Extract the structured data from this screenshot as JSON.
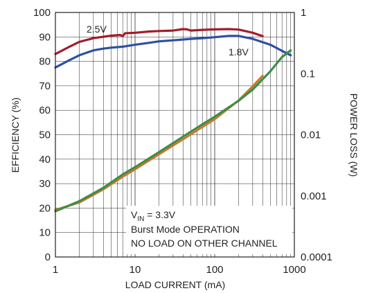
{
  "chart_data": {
    "type": "line",
    "xlabel": "LOAD CURRENT (mA)",
    "ylabel": "EFFICIENCY (%)",
    "y2label": "POWER LOSS (W)",
    "xscale": "log",
    "xlim": [
      1,
      1000
    ],
    "ylim": [
      0,
      100
    ],
    "y2scale": "log",
    "y2lim": [
      0.0001,
      1
    ],
    "grid": true,
    "x_ticks": [
      {
        "value": 1,
        "label": "1"
      },
      {
        "value": 10,
        "label": "10"
      },
      {
        "value": 100,
        "label": "100"
      },
      {
        "value": 1000,
        "label": "1000"
      }
    ],
    "y_ticks": [
      {
        "value": 0,
        "label": "0"
      },
      {
        "value": 10,
        "label": "10"
      },
      {
        "value": 20,
        "label": "20"
      },
      {
        "value": 30,
        "label": "30"
      },
      {
        "value": 40,
        "label": "40"
      },
      {
        "value": 50,
        "label": "50"
      },
      {
        "value": 60,
        "label": "60"
      },
      {
        "value": 70,
        "label": "70"
      },
      {
        "value": 80,
        "label": "80"
      },
      {
        "value": 90,
        "label": "90"
      },
      {
        "value": 100,
        "label": "100"
      }
    ],
    "y2_ticks": [
      {
        "value": 1,
        "label": "1"
      },
      {
        "value": 0.1,
        "label": "0.1"
      },
      {
        "value": 0.01,
        "label": "0.01"
      },
      {
        "value": 0.001,
        "label": "0.001"
      },
      {
        "value": 0.0001,
        "label": "0.0001"
      }
    ],
    "series": [
      {
        "name": "2.5V",
        "axis": "left",
        "color": "#a11d2b",
        "points": [
          [
            1,
            83
          ],
          [
            1.5,
            86
          ],
          [
            2,
            88
          ],
          [
            3,
            89.5
          ],
          [
            5,
            90.5
          ],
          [
            6.5,
            90.8
          ],
          [
            7,
            90.3
          ],
          [
            7.5,
            91.5
          ],
          [
            10,
            91.7
          ],
          [
            15,
            92.2
          ],
          [
            20,
            92.4
          ],
          [
            30,
            92.6
          ],
          [
            40,
            93.2
          ],
          [
            45,
            93.1
          ],
          [
            50,
            92.6
          ],
          [
            70,
            92.9
          ],
          [
            100,
            93.1
          ],
          [
            150,
            93.2
          ],
          [
            200,
            93
          ],
          [
            300,
            91.7
          ],
          [
            400,
            90.3
          ]
        ]
      },
      {
        "name": "1.8V",
        "axis": "left",
        "color": "#2e4fa3",
        "points": [
          [
            1,
            77.5
          ],
          [
            1.5,
            80.5
          ],
          [
            2,
            82.5
          ],
          [
            3,
            84.5
          ],
          [
            4,
            85.2
          ],
          [
            5,
            85.6
          ],
          [
            7,
            86
          ],
          [
            10,
            86.8
          ],
          [
            15,
            87.6
          ],
          [
            20,
            88.2
          ],
          [
            30,
            88.6
          ],
          [
            50,
            89.2
          ],
          [
            70,
            89.5
          ],
          [
            100,
            89.9
          ],
          [
            150,
            90.4
          ],
          [
            200,
            90.4
          ],
          [
            300,
            89.2
          ],
          [
            500,
            86.8
          ],
          [
            700,
            84.3
          ],
          [
            900,
            82.5
          ]
        ]
      },
      {
        "name": "",
        "axis": "right",
        "color": "#c87a2e",
        "points": [
          [
            1,
            0.00059
          ],
          [
            2,
            0.00078
          ],
          [
            4,
            0.00128
          ],
          [
            7,
            0.00206
          ],
          [
            10,
            0.00272
          ],
          [
            20,
            0.0048
          ],
          [
            40,
            0.0084
          ],
          [
            70,
            0.0134
          ],
          [
            100,
            0.018
          ],
          [
            200,
            0.0365
          ],
          [
            300,
            0.062
          ],
          [
            400,
            0.092
          ]
        ]
      },
      {
        "name": "",
        "axis": "right",
        "color": "#3e8d48",
        "points": [
          [
            1,
            0.00056
          ],
          [
            2,
            0.00082
          ],
          [
            4,
            0.00135
          ],
          [
            7,
            0.00224
          ],
          [
            10,
            0.00295
          ],
          [
            20,
            0.0052
          ],
          [
            40,
            0.0093
          ],
          [
            70,
            0.0148
          ],
          [
            100,
            0.0197
          ],
          [
            200,
            0.036
          ],
          [
            300,
            0.055
          ],
          [
            500,
            0.109
          ],
          [
            700,
            0.187
          ],
          [
            900,
            0.24
          ]
        ]
      }
    ],
    "annotations": {
      "vin_main": "V",
      "vin_sub": "IN",
      "vin_rest": " = 3.3V",
      "line2": "Burst Mode OPERATION",
      "line3": "NO LOAD ON OTHER CHANNEL"
    }
  }
}
